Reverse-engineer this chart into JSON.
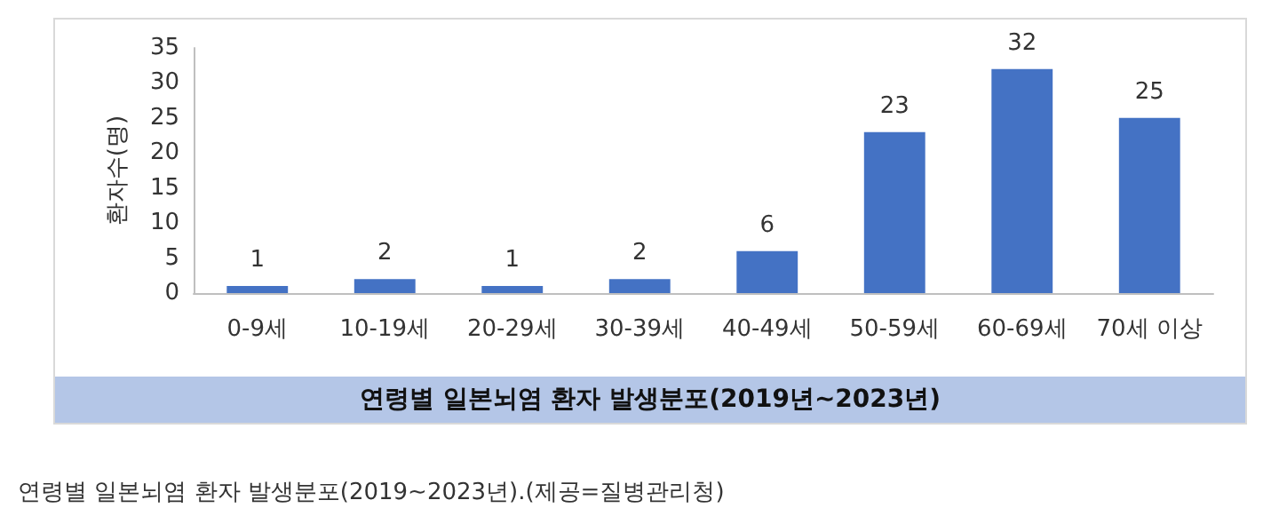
{
  "chart_data": {
    "type": "bar",
    "title": "연령별 일본뇌염 환자 발생분포(2019년~2023년)",
    "ylabel": "환자수(명)",
    "categories": [
      "0-9세",
      "10-19세",
      "20-29세",
      "30-39세",
      "40-49세",
      "50-59세",
      "60-69세",
      "70세 이상"
    ],
    "values": [
      1,
      2,
      1,
      2,
      6,
      23,
      32,
      25
    ],
    "color": "#4472c4",
    "ylim": [
      0,
      35
    ],
    "yticks": [
      0,
      5,
      10,
      15,
      20,
      25,
      30,
      35
    ],
    "grid": false,
    "data_labels": true,
    "annotations": [
      "연령별 일본뇌염 환자 발생분포(2019~2023년).(제공=질병관리청)"
    ]
  }
}
